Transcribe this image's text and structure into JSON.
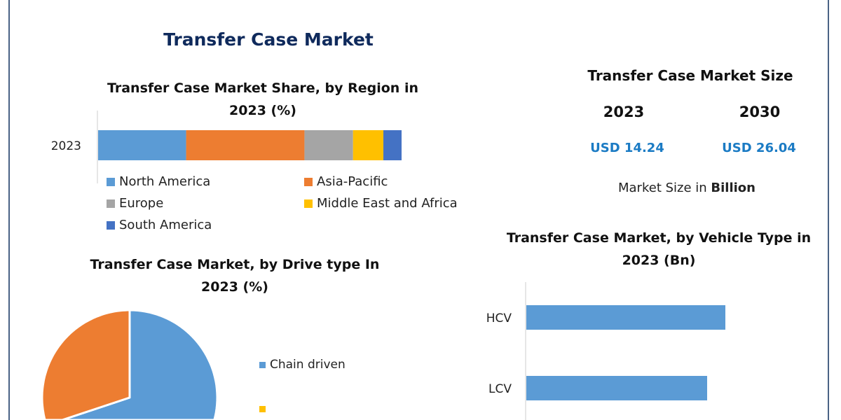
{
  "title": "Transfer Case Market",
  "market_size": {
    "title": "Transfer Case Market Size",
    "years": [
      "2023",
      "2030"
    ],
    "values": [
      "USD 14.24",
      "USD 26.04"
    ],
    "unit_prefix": "Market Size in ",
    "unit_bold": "Billion"
  },
  "chart_data": [
    {
      "type": "bar",
      "orientation": "horizontal-stacked",
      "title": "Transfer Case Market Share, by Region in 2023 (%)",
      "categories": [
        "2023"
      ],
      "series": [
        {
          "name": "North America",
          "values": [
            29
          ],
          "color": "#5b9bd5"
        },
        {
          "name": "Asia-Pacific",
          "values": [
            39
          ],
          "color": "#ed7d31"
        },
        {
          "name": "Europe",
          "values": [
            16
          ],
          "color": "#a5a5a5"
        },
        {
          "name": "Middle East and Africa",
          "values": [
            10
          ],
          "color": "#ffc000"
        },
        {
          "name": "South America",
          "values": [
            6
          ],
          "color": "#4472c4"
        }
      ],
      "legend_placement": "bottom"
    },
    {
      "type": "pie",
      "title": "Transfer Case Market, by Drive type In 2023 (%)",
      "slices": [
        {
          "name": "Chain driven",
          "value": 64,
          "color": "#5b9bd5"
        },
        {
          "value": 36,
          "color": "#ed7d31"
        }
      ],
      "legend_placement": "right"
    },
    {
      "type": "bar",
      "orientation": "horizontal",
      "title": "Transfer Case Market, by Vehicle Type in 2023 (Bn)",
      "categories": [
        "HCV",
        "LCV"
      ],
      "values": [
        7.1,
        6.45
      ],
      "color": "#5b9bd5"
    }
  ]
}
